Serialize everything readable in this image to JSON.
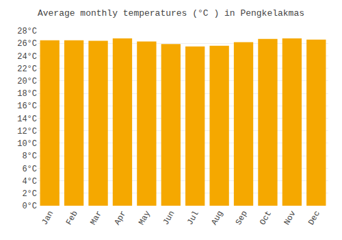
{
  "chart_data": {
    "type": "bar",
    "title": "Average monthly temperatures (°C ) in Pengkelakmas",
    "categories": [
      "Jan",
      "Feb",
      "Mar",
      "Apr",
      "May",
      "Jun",
      "Jul",
      "Aug",
      "Sep",
      "Oct",
      "Nov",
      "Dec"
    ],
    "values": [
      26.5,
      26.5,
      26.4,
      26.8,
      26.3,
      25.9,
      25.5,
      25.6,
      26.2,
      26.7,
      26.8,
      26.6
    ],
    "color": "#F5A800",
    "ylim": [
      0,
      28
    ],
    "yticks": [
      {
        "value": 0,
        "label": "0°C"
      },
      {
        "value": 2,
        "label": "2°C"
      },
      {
        "value": 4,
        "label": "4°C"
      },
      {
        "value": 6,
        "label": "6°C"
      },
      {
        "value": 8,
        "label": "8°C"
      },
      {
        "value": 10,
        "label": "10°C"
      },
      {
        "value": 12,
        "label": "12°C"
      },
      {
        "value": 14,
        "label": "14°C"
      },
      {
        "value": 16,
        "label": "16°C"
      },
      {
        "value": 18,
        "label": "18°C"
      },
      {
        "value": 20,
        "label": "20°C"
      },
      {
        "value": 22,
        "label": "22°C"
      },
      {
        "value": 24,
        "label": "24°C"
      },
      {
        "value": 26,
        "label": "26°C"
      },
      {
        "value": 28,
        "label": "28°C"
      }
    ],
    "grid": true
  }
}
